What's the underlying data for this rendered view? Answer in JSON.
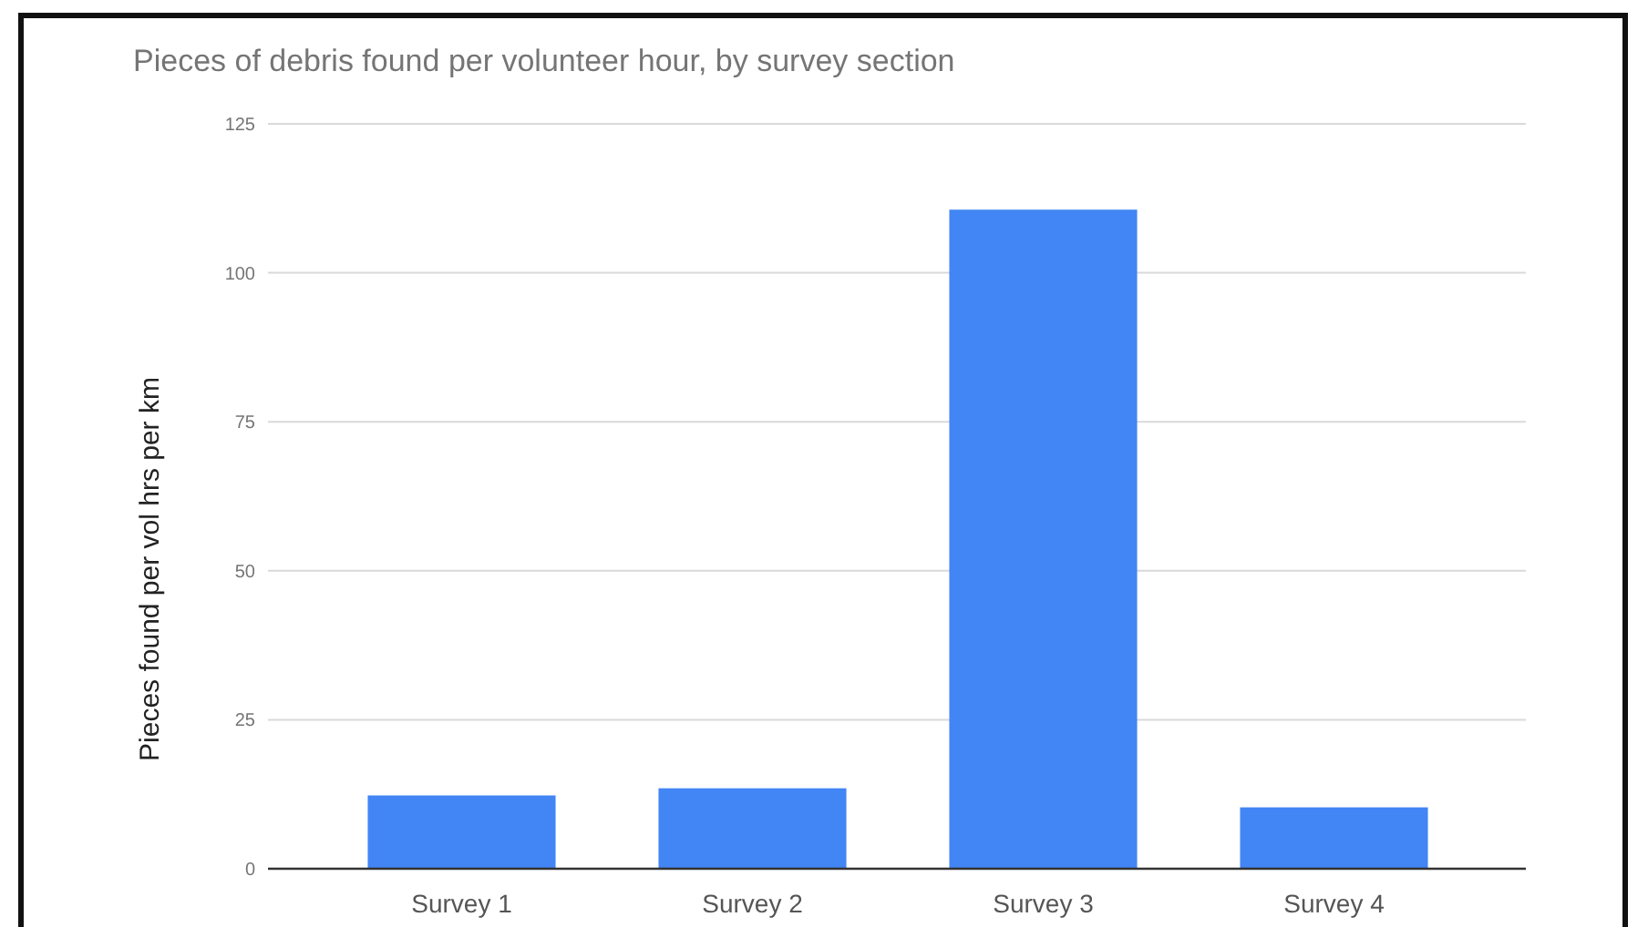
{
  "chart_data": {
    "type": "bar",
    "title": "Pieces of debris found per volunteer hour, by survey section",
    "ylabel": "Pieces found per vol hrs per km",
    "categories": [
      "Survey 1",
      "Survey 2",
      "Survey 3",
      "Survey 4"
    ],
    "values": [
      12.3,
      13.5,
      110.6,
      10.3
    ],
    "color": "#4285f4",
    "ylim": [
      0,
      125
    ],
    "yticks": [
      0,
      25,
      50,
      75,
      100,
      125
    ],
    "grid": "y"
  }
}
